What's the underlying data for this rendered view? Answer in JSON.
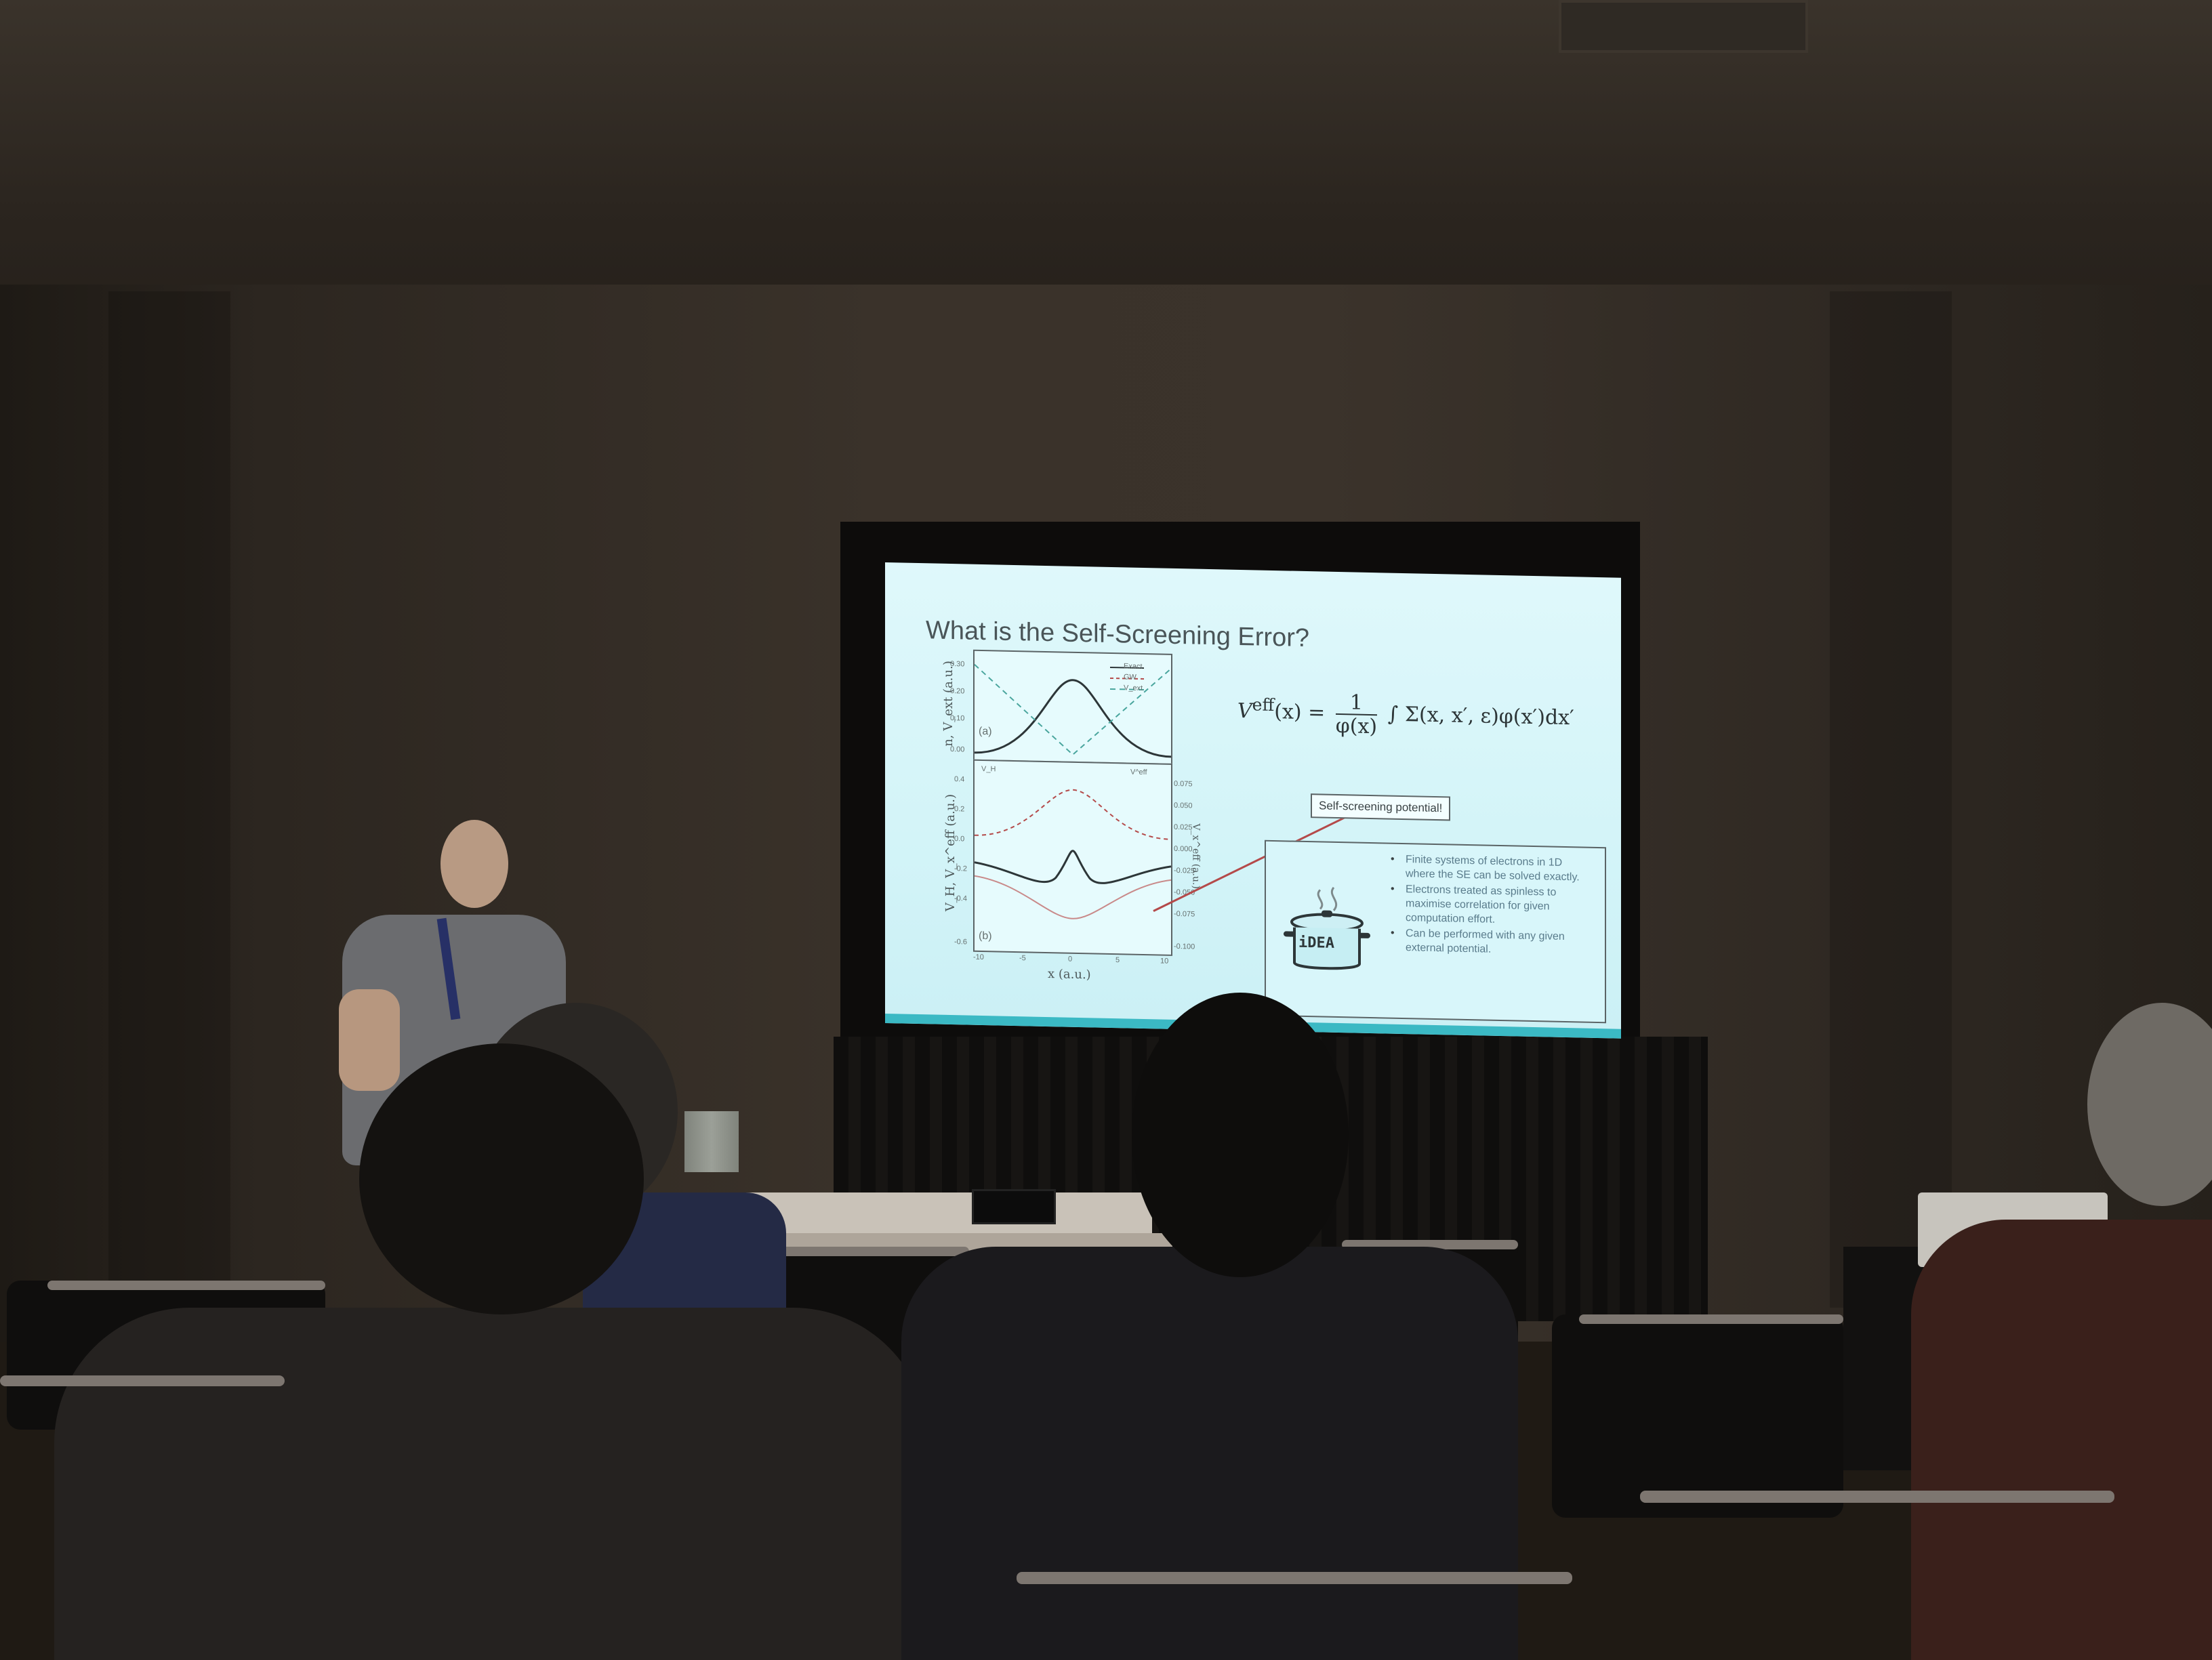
{
  "slide": {
    "title": "What is the Self-Screening Error?",
    "formula": {
      "lhs": "V",
      "lhs_sup": "eff",
      "lhs_arg": "(x) =",
      "frac_num": "1",
      "frac_den": "φ(x)",
      "rhs": "∫ Σ(x, x′, ε)φ(x′)dx′"
    },
    "plot": {
      "panel_a_ylabel": "n, V_ext (a.u.)",
      "panel_b_ylabel": "V_H, V_x^eff (a.u.)",
      "panel_b_ylabel_right": "V_x^eff (a.u.)",
      "xlabel": "x (a.u.)",
      "panel_a_tag": "(a)",
      "panel_b_tag": "(b)",
      "panel_a_legend": [
        "Exact",
        "GW",
        "V_ext"
      ],
      "panel_b_legend": [
        "V_H",
        "V^eff"
      ],
      "panel_a_yticks": [
        "0.30",
        "0.20",
        "0.10",
        "0.00"
      ],
      "panel_b_yticks": [
        "0.4",
        "0.2",
        "0.0",
        "-0.2",
        "-0.4",
        "-0.6"
      ],
      "panel_b_right_yticks": [
        "0.075",
        "0.050",
        "0.025",
        "0.000",
        "-0.025",
        "-0.050",
        "-0.075",
        "-0.100"
      ],
      "xticks": [
        "-10",
        "-5",
        "0",
        "5",
        "10"
      ]
    },
    "callout": "Self-screening potential!",
    "idea_logo": "iDEA",
    "bullets": [
      "Finite systems of electrons in 1D where the SE can be solved exactly.",
      "Electrons treated as spinless to maximise correlation for given computation effort.",
      "Can be performed with any given external potential."
    ]
  },
  "colors": {
    "slide_background": "#d3f4f8",
    "slide_accent": "#3bb9c4",
    "bullet_text": "#5a7c8c",
    "room": "#2c2620"
  }
}
